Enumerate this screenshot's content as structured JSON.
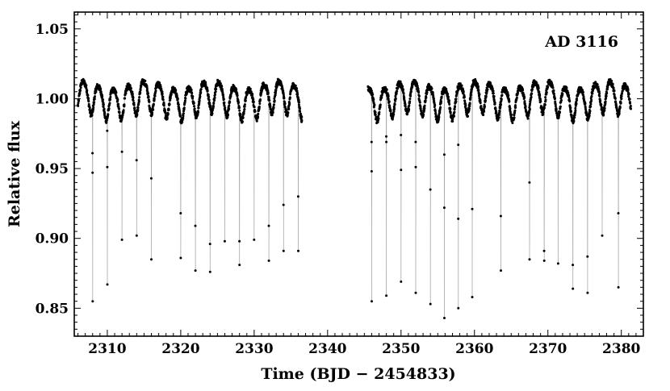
{
  "chart_data": {
    "type": "scatter",
    "xlabel": "Time (BJD − 2454833)",
    "ylabel": "Relative flux",
    "annotation": "AD 3116",
    "xlim": [
      2305.5,
      2383.0
    ],
    "ylim": [
      0.83,
      1.062
    ],
    "xticks": [
      2310,
      2320,
      2330,
      2340,
      2350,
      2360,
      2370,
      2380
    ],
    "yticks": [
      0.85,
      0.9,
      0.95,
      1.0,
      1.05
    ],
    "ytick_labels": [
      "0.85",
      "0.90",
      "0.95",
      "1.00",
      "1.05"
    ],
    "grid": false,
    "data_gap": [
      2336.5,
      2345.5
    ],
    "variability": {
      "baseline": 1.0,
      "amplitude": 0.011,
      "period_days": 2.05
    },
    "eclipse_period_days": 1.96,
    "eclipses": [
      {
        "t": 2308.0,
        "points": [
          0.961,
          0.947,
          0.855
        ]
      },
      {
        "t": 2310.0,
        "points": [
          0.977,
          0.951,
          0.867
        ]
      },
      {
        "t": 2312.0,
        "points": [
          0.962,
          0.899
        ]
      },
      {
        "t": 2314.0,
        "points": [
          0.956,
          0.902
        ]
      },
      {
        "t": 2316.0,
        "points": [
          0.943,
          0.885
        ]
      },
      {
        "t": 2320.0,
        "points": [
          0.918,
          0.886
        ]
      },
      {
        "t": 2322.0,
        "points": [
          0.909,
          0.877
        ]
      },
      {
        "t": 2324.0,
        "points": [
          0.896,
          0.876
        ]
      },
      {
        "t": 2326.0,
        "points": [
          0.898
        ]
      },
      {
        "t": 2328.0,
        "points": [
          0.898,
          0.881
        ]
      },
      {
        "t": 2330.0,
        "points": [
          0.899
        ]
      },
      {
        "t": 2332.0,
        "points": [
          0.909,
          0.884
        ]
      },
      {
        "t": 2334.0,
        "points": [
          0.924,
          0.891
        ]
      },
      {
        "t": 2336.0,
        "points": [
          0.93,
          0.891
        ]
      },
      {
        "t": 2346.0,
        "points": [
          0.969,
          0.948,
          0.855
        ]
      },
      {
        "t": 2348.0,
        "points": [
          0.973,
          0.969,
          0.859
        ]
      },
      {
        "t": 2350.0,
        "points": [
          0.974,
          0.949,
          0.869
        ]
      },
      {
        "t": 2352.0,
        "points": [
          0.969,
          0.951,
          0.861
        ]
      },
      {
        "t": 2354.0,
        "points": [
          0.935,
          0.853
        ]
      },
      {
        "t": 2355.9,
        "points": [
          0.96,
          0.922,
          0.843
        ]
      },
      {
        "t": 2357.8,
        "points": [
          0.967,
          0.914,
          0.85
        ]
      },
      {
        "t": 2359.7,
        "points": [
          0.921,
          0.858
        ]
      },
      {
        "t": 2363.6,
        "points": [
          0.916,
          0.877
        ]
      },
      {
        "t": 2367.5,
        "points": [
          0.94,
          0.885
        ]
      },
      {
        "t": 2369.5,
        "points": [
          0.891,
          0.884
        ]
      },
      {
        "t": 2371.4,
        "points": [
          0.882
        ]
      },
      {
        "t": 2373.4,
        "points": [
          0.881,
          0.864
        ]
      },
      {
        "t": 2375.4,
        "points": [
          0.887,
          0.861
        ]
      },
      {
        "t": 2377.4,
        "points": [
          0.902
        ]
      },
      {
        "t": 2379.6,
        "points": [
          0.918,
          0.865
        ]
      }
    ]
  }
}
